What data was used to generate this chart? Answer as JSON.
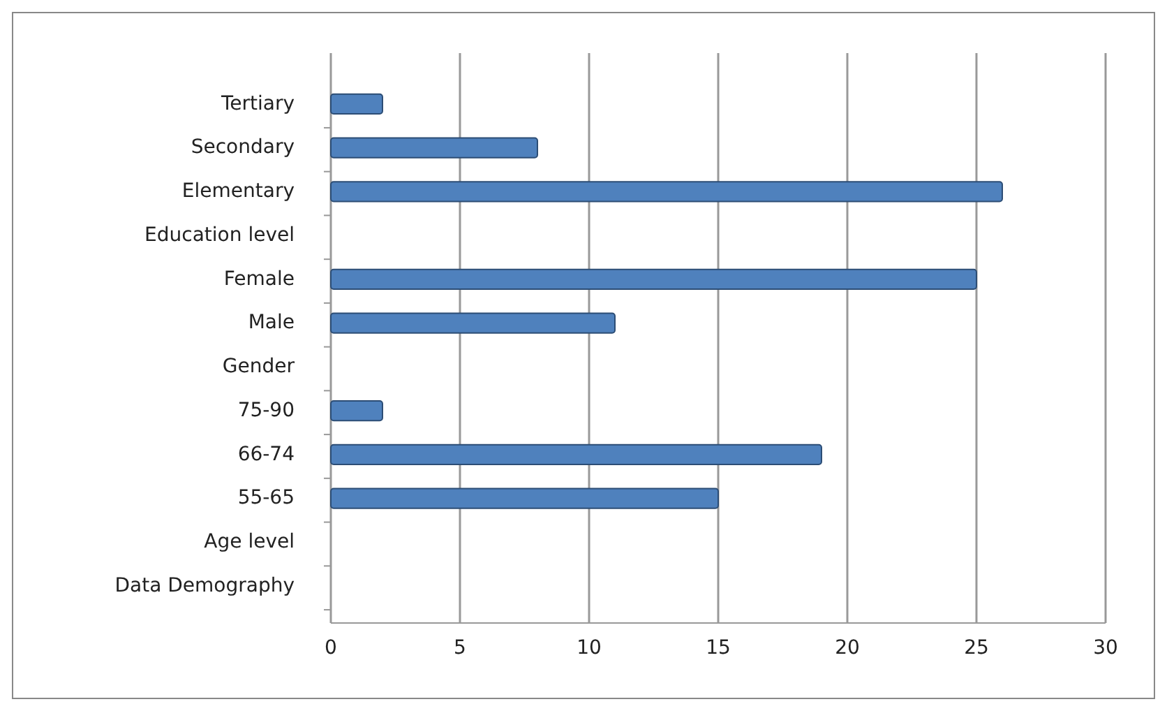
{
  "chart_data": {
    "type": "bar",
    "orientation": "horizontal",
    "categories": [
      "Tertiary",
      "Secondary",
      "Elementary",
      "Education level",
      "Female",
      "Male",
      "Gender",
      "75-90",
      "66-74",
      "55-65",
      "Age level",
      "Data Demography"
    ],
    "values": [
      2,
      8,
      26,
      null,
      25,
      11,
      null,
      2,
      19,
      15,
      null,
      null
    ],
    "color": "#4f81bd",
    "xlim": [
      0,
      30
    ],
    "xticks": [
      0,
      5,
      10,
      15,
      20,
      25,
      30
    ],
    "grid": "x"
  }
}
